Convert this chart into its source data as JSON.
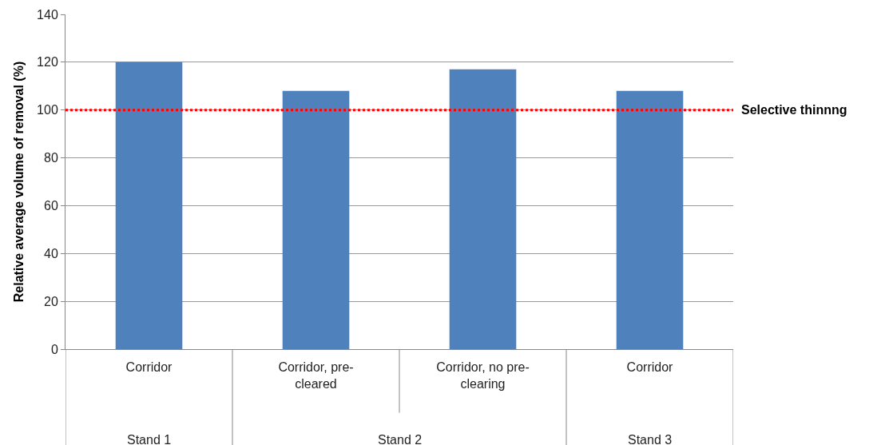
{
  "chart_data": {
    "type": "bar",
    "ylabel": "Relative average volume of removal (%)",
    "categories": [
      "Corridor",
      "Corridor, pre-cleared",
      "Corridor, no pre-clearing",
      "Corridor"
    ],
    "values": [
      120,
      108,
      117,
      108
    ],
    "color": "#4f81bd",
    "ylim": [
      0,
      140
    ],
    "yticks": [
      0,
      20,
      40,
      60,
      80,
      100,
      120,
      140
    ],
    "grid": "y",
    "ref_lines": [
      {
        "axis": "y",
        "value": 100,
        "label": "Selective thinnng",
        "color": "#ff0000",
        "line_style": "dotted"
      }
    ],
    "annotations": [
      "Stand 1",
      "Stand 2",
      "Stand 3"
    ]
  }
}
